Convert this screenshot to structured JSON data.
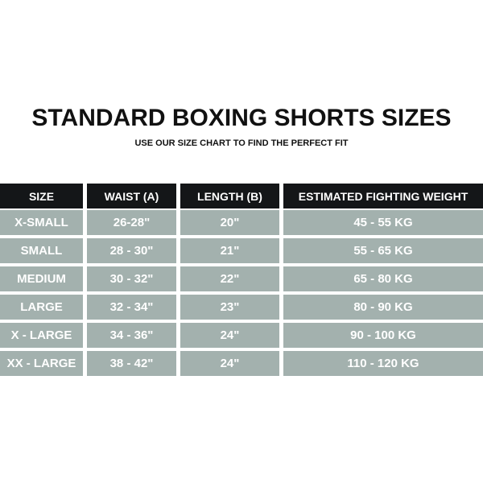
{
  "title": "STANDARD BOXING SHORTS SIZES",
  "subtitle": "USE OUR SIZE CHART TO FIND THE PERFECT FIT",
  "colors": {
    "header_bg": "#141618",
    "row_bg": "#a3b1ae",
    "text": "#ffffff"
  },
  "headers": [
    "SIZE",
    "WAIST (A)",
    "LENGTH (B)",
    "ESTIMATED FIGHTING WEIGHT"
  ],
  "rows": [
    [
      "X-SMALL",
      "26-28\"",
      "20\"",
      "45 - 55 KG"
    ],
    [
      "SMALL",
      "28 - 30\"",
      "21\"",
      "55 - 65 KG"
    ],
    [
      "MEDIUM",
      "30 - 32\"",
      "22\"",
      "65 - 80 KG"
    ],
    [
      "LARGE",
      "32 - 34\"",
      "23\"",
      "80 - 90 KG"
    ],
    [
      "X - LARGE",
      "34 - 36\"",
      "24\"",
      "90 - 100 KG"
    ],
    [
      "XX - LARGE",
      "38 - 42\"",
      "24\"",
      "110 - 120 KG"
    ]
  ]
}
